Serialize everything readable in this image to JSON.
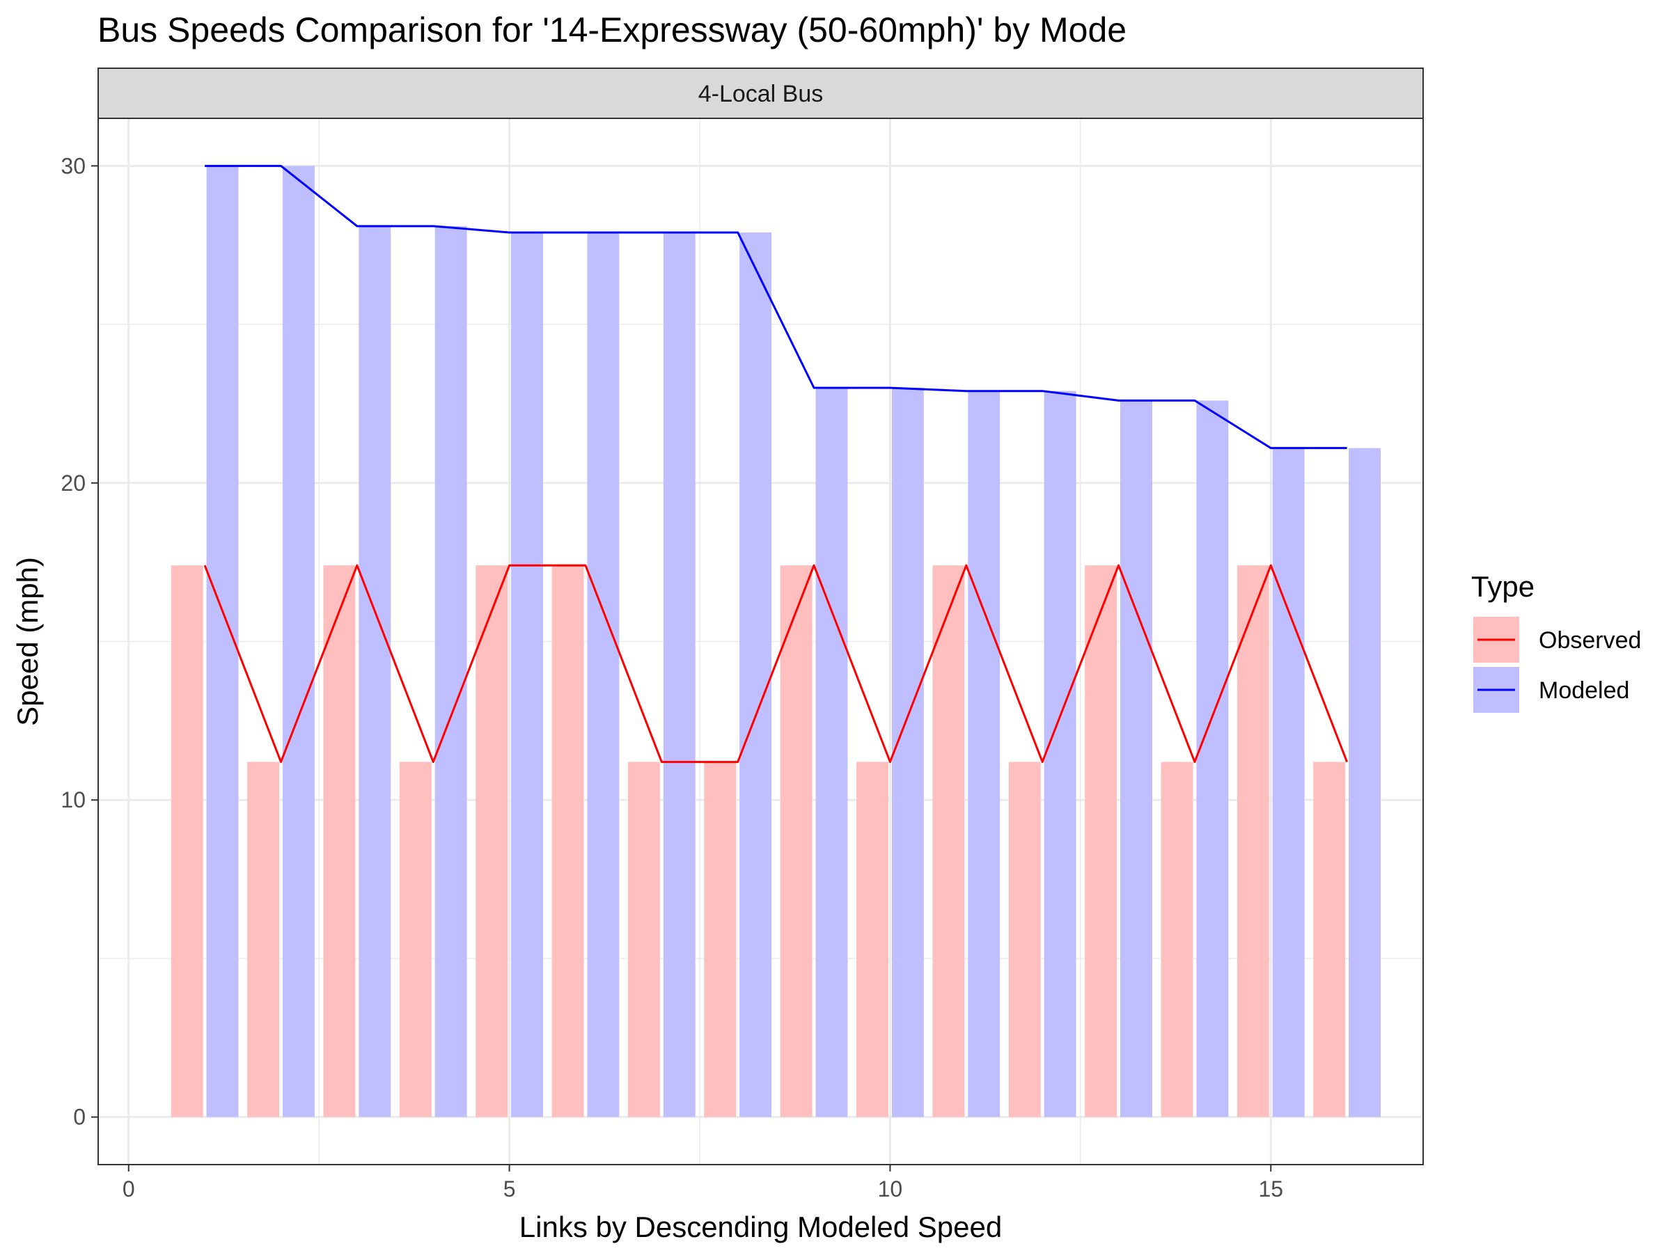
{
  "chart_data": {
    "type": "bar",
    "title": "Bus Speeds Comparison for '14-Expressway (50-60mph)' by Mode",
    "facet_label": "4-Local Bus",
    "xlabel": "Links by Descending Modeled Speed",
    "ylabel": "Speed (mph)",
    "x": [
      1,
      2,
      3,
      4,
      5,
      6,
      7,
      8,
      9,
      10,
      11,
      12,
      13,
      14,
      15,
      16
    ],
    "xlim": [
      -0.4,
      17.0
    ],
    "ylim": [
      -1.5,
      31.5
    ],
    "x_ticks": [
      0,
      5,
      10,
      15
    ],
    "y_ticks": [
      0,
      10,
      20,
      30
    ],
    "x_tick_labels": [
      "0",
      "5",
      "10",
      "15"
    ],
    "y_tick_labels": [
      "0",
      "10",
      "20",
      "30"
    ],
    "grid": true,
    "legend": {
      "title": "Type",
      "position": "right"
    },
    "series": [
      {
        "name": "Observed",
        "color": "#ff0000",
        "fill": "#ffbfbf",
        "values": [
          17.4,
          11.2,
          17.4,
          11.2,
          17.4,
          17.4,
          11.2,
          11.2,
          17.4,
          11.2,
          17.4,
          11.2,
          17.4,
          11.2,
          17.4,
          11.2
        ]
      },
      {
        "name": "Modeled",
        "color": "#0000ff",
        "fill": "#bfbfff",
        "values": [
          30.0,
          30.0,
          28.1,
          28.1,
          27.9,
          27.9,
          27.9,
          27.9,
          23.0,
          23.0,
          22.9,
          22.9,
          22.6,
          22.6,
          21.1,
          21.1
        ]
      }
    ]
  }
}
